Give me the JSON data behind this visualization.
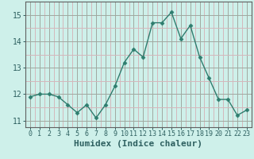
{
  "x": [
    0,
    1,
    2,
    3,
    4,
    5,
    6,
    7,
    8,
    9,
    10,
    11,
    12,
    13,
    14,
    15,
    16,
    17,
    18,
    19,
    20,
    21,
    22,
    23
  ],
  "y": [
    11.9,
    12.0,
    12.0,
    11.9,
    11.6,
    11.3,
    11.6,
    11.1,
    11.6,
    12.3,
    13.2,
    13.7,
    13.4,
    14.7,
    14.7,
    15.1,
    14.1,
    14.6,
    13.4,
    12.6,
    11.8,
    11.8,
    11.2,
    11.4
  ],
  "line_color": "#2e7d6e",
  "marker": "D",
  "markersize": 2.5,
  "linewidth": 1.0,
  "bg_color": "#cef0ea",
  "xlabel": "Humidex (Indice chaleur)",
  "xlabel_fontsize": 8,
  "yticks": [
    11,
    12,
    13,
    14,
    15
  ],
  "xticks": [
    0,
    1,
    2,
    3,
    4,
    5,
    6,
    7,
    8,
    9,
    10,
    11,
    12,
    13,
    14,
    15,
    16,
    17,
    18,
    19,
    20,
    21,
    22,
    23
  ],
  "ylim": [
    10.75,
    15.5
  ],
  "xlim": [
    -0.5,
    23.5
  ],
  "tick_color": "#2e6060",
  "grid_major_color": "#a0a8a0",
  "grid_minor_color": "#d4b8bc",
  "spine_color": "#606060"
}
